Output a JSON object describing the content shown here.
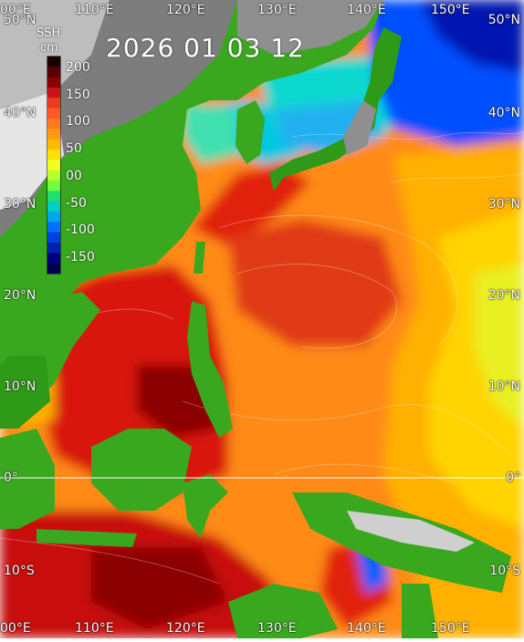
{
  "map": {
    "timestamp": "2026 01 03 12",
    "variable": "SSH",
    "unit": "cm",
    "colorbar_ticks": [
      "200",
      "150",
      "100",
      "50",
      "00",
      "-50",
      "-100",
      "-150"
    ],
    "colorbar_colors": [
      "#1a0000",
      "#5a0000",
      "#8b0000",
      "#c81414",
      "#ee3b1e",
      "#ff5a28",
      "#ff7a1e",
      "#ff9a10",
      "#ffbb00",
      "#ffe000",
      "#f0ff20",
      "#b8ff30",
      "#70ff40",
      "#20e070",
      "#00d0c0",
      "#00a8f0",
      "#0070ff",
      "#0040e0",
      "#0020b0",
      "#000080",
      "#00004a"
    ],
    "lat_labels_left": [
      "50°N",
      "40°N",
      "30°N",
      "20°N",
      "10°N",
      "0°",
      "10°S"
    ],
    "lat_labels_right": [
      "50°N",
      "40°N",
      "30°N",
      "20°N",
      "10°N",
      "0°",
      "10°S"
    ],
    "lon_labels_top": [
      "00°E",
      "110°E",
      "120°E",
      "130°E",
      "140°E",
      "150°E"
    ],
    "lon_labels_bottom": [
      "00°E",
      "110°E",
      "120°E",
      "130°E",
      "140°E",
      "150°E"
    ],
    "colors": {
      "ocean_high": "#c80a0a",
      "ocean_mid": "#ff6a20",
      "ocean_orange": "#ff9a10",
      "ocean_yellow": "#ffd000",
      "ocean_green": "#b8ff30",
      "ocean_cyan": "#00c8e0",
      "ocean_blue": "#0050ff",
      "ocean_deep": "#0010a0",
      "land_green": "#3aa81e",
      "land_grey": "#7d7d7d",
      "land_light": "#cfcfcf"
    }
  }
}
